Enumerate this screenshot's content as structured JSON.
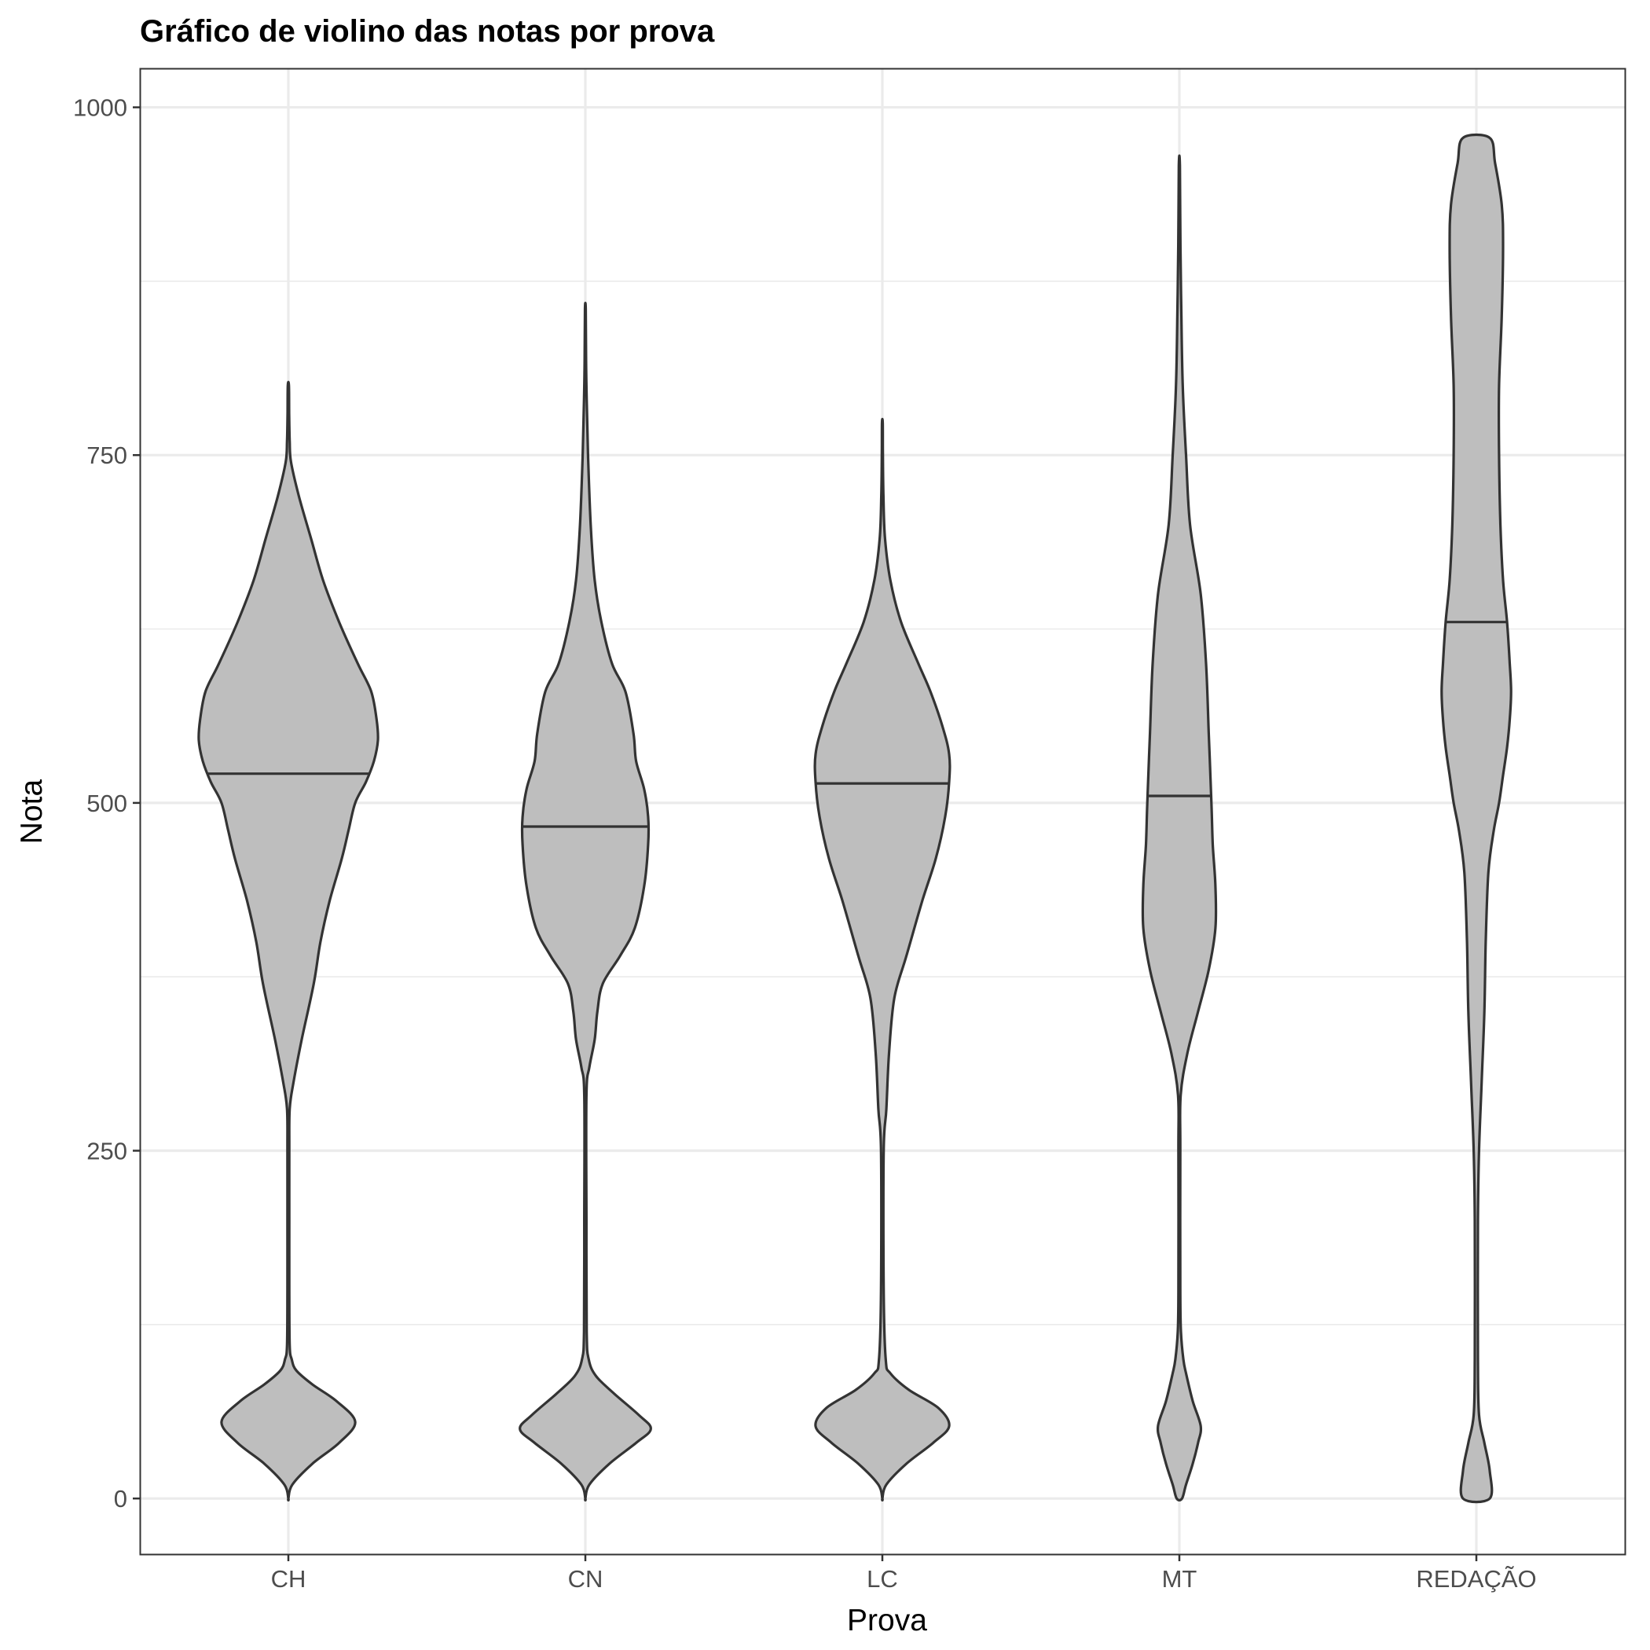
{
  "chart_data": {
    "type": "violin",
    "title": "Gráfico de violino das notas por prova",
    "xlabel": "Prova",
    "ylabel": "Nota",
    "categories": [
      "CH",
      "CN",
      "LC",
      "MT",
      "REDAÇÃO"
    ],
    "ylim": [
      -40,
      1028
    ],
    "y_ticks": [
      0,
      250,
      500,
      750,
      1000
    ],
    "y_tick_labels": [
      "0",
      "250",
      "500",
      "750",
      "1000"
    ],
    "y_minor_grid": [
      125,
      375,
      625,
      875
    ],
    "grid": true,
    "fill_color": "#bebebe",
    "outline_color": "#333333",
    "violins": [
      {
        "category": "CH",
        "median": 521,
        "profile": [
          [
            0,
            0
          ],
          [
            10,
            0.03
          ],
          [
            25,
            0.18
          ],
          [
            40,
            0.38
          ],
          [
            55,
            0.5
          ],
          [
            70,
            0.36
          ],
          [
            82,
            0.18
          ],
          [
            92,
            0.06
          ],
          [
            100,
            0.025
          ],
          [
            110,
            0.01
          ],
          [
            150,
            0.007
          ],
          [
            200,
            0.007
          ],
          [
            250,
            0.007
          ],
          [
            280,
            0.01
          ],
          [
            300,
            0.04
          ],
          [
            330,
            0.1
          ],
          [
            370,
            0.19
          ],
          [
            400,
            0.24
          ],
          [
            430,
            0.31
          ],
          [
            460,
            0.4
          ],
          [
            480,
            0.45
          ],
          [
            500,
            0.5
          ],
          [
            515,
            0.58
          ],
          [
            530,
            0.64
          ],
          [
            545,
            0.67
          ],
          [
            560,
            0.66
          ],
          [
            580,
            0.62
          ],
          [
            600,
            0.52
          ],
          [
            630,
            0.38
          ],
          [
            660,
            0.26
          ],
          [
            690,
            0.17
          ],
          [
            720,
            0.08
          ],
          [
            745,
            0.02
          ],
          [
            760,
            0.01
          ],
          [
            780,
            0.006
          ],
          [
            800,
            0.004
          ]
        ]
      },
      {
        "category": "CN",
        "median": 483,
        "profile": [
          [
            0,
            0
          ],
          [
            10,
            0.03
          ],
          [
            25,
            0.18
          ],
          [
            40,
            0.38
          ],
          [
            50,
            0.49
          ],
          [
            60,
            0.4
          ],
          [
            75,
            0.22
          ],
          [
            88,
            0.08
          ],
          [
            100,
            0.025
          ],
          [
            120,
            0.01
          ],
          [
            200,
            0.008
          ],
          [
            290,
            0.008
          ],
          [
            310,
            0.03
          ],
          [
            330,
            0.07
          ],
          [
            350,
            0.09
          ],
          [
            370,
            0.13
          ],
          [
            390,
            0.26
          ],
          [
            410,
            0.37
          ],
          [
            440,
            0.44
          ],
          [
            470,
            0.47
          ],
          [
            490,
            0.47
          ],
          [
            510,
            0.44
          ],
          [
            530,
            0.38
          ],
          [
            550,
            0.36
          ],
          [
            580,
            0.3
          ],
          [
            600,
            0.2
          ],
          [
            630,
            0.12
          ],
          [
            660,
            0.07
          ],
          [
            700,
            0.04
          ],
          [
            750,
            0.02
          ],
          [
            790,
            0.01
          ],
          [
            820,
            0.005
          ],
          [
            855,
            0.003
          ]
        ]
      },
      {
        "category": "LC",
        "median": 514,
        "profile": [
          [
            0,
            0
          ],
          [
            10,
            0.03
          ],
          [
            25,
            0.18
          ],
          [
            40,
            0.38
          ],
          [
            52,
            0.5
          ],
          [
            65,
            0.42
          ],
          [
            78,
            0.2
          ],
          [
            90,
            0.06
          ],
          [
            100,
            0.025
          ],
          [
            150,
            0.01
          ],
          [
            250,
            0.01
          ],
          [
            280,
            0.03
          ],
          [
            320,
            0.05
          ],
          [
            360,
            0.09
          ],
          [
            390,
            0.18
          ],
          [
            430,
            0.3
          ],
          [
            460,
            0.4
          ],
          [
            490,
            0.47
          ],
          [
            515,
            0.5
          ],
          [
            535,
            0.5
          ],
          [
            555,
            0.45
          ],
          [
            580,
            0.36
          ],
          [
            600,
            0.27
          ],
          [
            630,
            0.14
          ],
          [
            660,
            0.06
          ],
          [
            690,
            0.02
          ],
          [
            720,
            0.008
          ],
          [
            750,
            0.004
          ],
          [
            773,
            0.003
          ]
        ]
      },
      {
        "category": "MT",
        "median": 505,
        "profile": [
          [
            0,
            0.02
          ],
          [
            10,
            0.05
          ],
          [
            25,
            0.1
          ],
          [
            40,
            0.14
          ],
          [
            52,
            0.16
          ],
          [
            70,
            0.1
          ],
          [
            90,
            0.05
          ],
          [
            100,
            0.03
          ],
          [
            120,
            0.012
          ],
          [
            150,
            0.007
          ],
          [
            250,
            0.007
          ],
          [
            290,
            0.01
          ],
          [
            320,
            0.06
          ],
          [
            350,
            0.14
          ],
          [
            380,
            0.22
          ],
          [
            410,
            0.27
          ],
          [
            440,
            0.27
          ],
          [
            470,
            0.25
          ],
          [
            500,
            0.24
          ],
          [
            550,
            0.22
          ],
          [
            600,
            0.2
          ],
          [
            650,
            0.16
          ],
          [
            700,
            0.08
          ],
          [
            750,
            0.05
          ],
          [
            800,
            0.025
          ],
          [
            850,
            0.015
          ],
          [
            900,
            0.008
          ],
          [
            958,
            0.004
          ]
        ]
      },
      {
        "category": "REDAÇÃO",
        "median": 630,
        "profile": [
          [
            0,
            0.1
          ],
          [
            20,
            0.1
          ],
          [
            40,
            0.06
          ],
          [
            60,
            0.02
          ],
          [
            100,
            0.012
          ],
          [
            200,
            0.012
          ],
          [
            250,
            0.02
          ],
          [
            300,
            0.04
          ],
          [
            350,
            0.06
          ],
          [
            400,
            0.07
          ],
          [
            450,
            0.09
          ],
          [
            480,
            0.13
          ],
          [
            500,
            0.17
          ],
          [
            520,
            0.2
          ],
          [
            540,
            0.23
          ],
          [
            560,
            0.25
          ],
          [
            580,
            0.26
          ],
          [
            600,
            0.25
          ],
          [
            630,
            0.23
          ],
          [
            660,
            0.2
          ],
          [
            700,
            0.18
          ],
          [
            750,
            0.17
          ],
          [
            800,
            0.17
          ],
          [
            850,
            0.19
          ],
          [
            900,
            0.2
          ],
          [
            930,
            0.19
          ],
          [
            960,
            0.14
          ],
          [
            978,
            0.1
          ]
        ]
      }
    ]
  }
}
